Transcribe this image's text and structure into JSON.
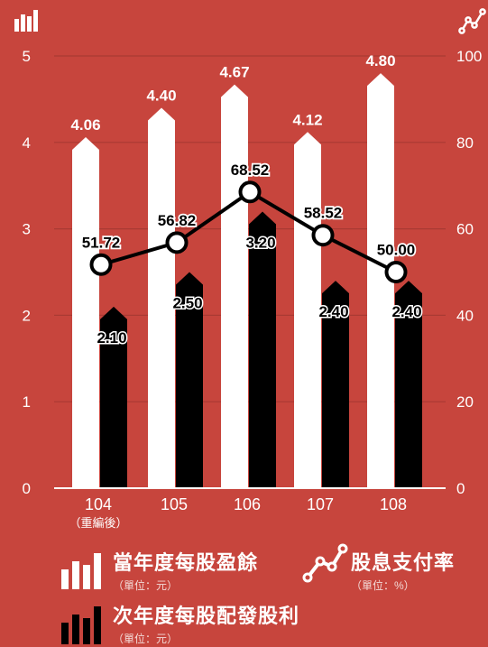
{
  "chart_data": {
    "type": "bar+line",
    "categories": [
      "104",
      "105",
      "106",
      "107",
      "108"
    ],
    "category_notes": [
      "（重編後）",
      "",
      "",
      "",
      ""
    ],
    "series": [
      {
        "name": "當年度每股盈餘",
        "unit": "（單位：元）",
        "axis": "left",
        "kind": "bar",
        "color": "#ffffff",
        "values": [
          4.06,
          4.4,
          4.67,
          4.12,
          4.8
        ]
      },
      {
        "name": "次年度每股配發股利",
        "unit": "（單位：元）",
        "axis": "left",
        "kind": "bar",
        "color": "#000000",
        "values": [
          2.1,
          2.5,
          3.2,
          2.4,
          2.4
        ]
      },
      {
        "name": "股息支付率",
        "unit": "（單位：%）",
        "axis": "right",
        "kind": "line",
        "color": "#000000",
        "values": [
          51.72,
          56.82,
          68.52,
          58.52,
          50.0
        ]
      }
    ],
    "value_labels": {
      "eps": [
        "4.06",
        "4.40",
        "4.67",
        "4.12",
        "4.80"
      ],
      "dividend": [
        "2.10",
        "2.50",
        "3.20",
        "2.40",
        "2.40"
      ],
      "payout": [
        "51.72",
        "56.82",
        "68.52",
        "58.52",
        "50.00"
      ]
    },
    "left_axis": {
      "min": 0,
      "max": 5,
      "ticks": [
        "0",
        "1",
        "2",
        "3",
        "4",
        "5"
      ]
    },
    "right_axis": {
      "min": 0,
      "max": 100,
      "ticks": [
        "0",
        "20",
        "40",
        "60",
        "80",
        "100"
      ]
    },
    "grid": true,
    "legend": "bottom"
  },
  "icons": {
    "left_axis": "bar-chart-icon",
    "right_axis": "line-chart-icon"
  },
  "colors": {
    "background": "#c7453d",
    "gridline": "#a93a33"
  }
}
